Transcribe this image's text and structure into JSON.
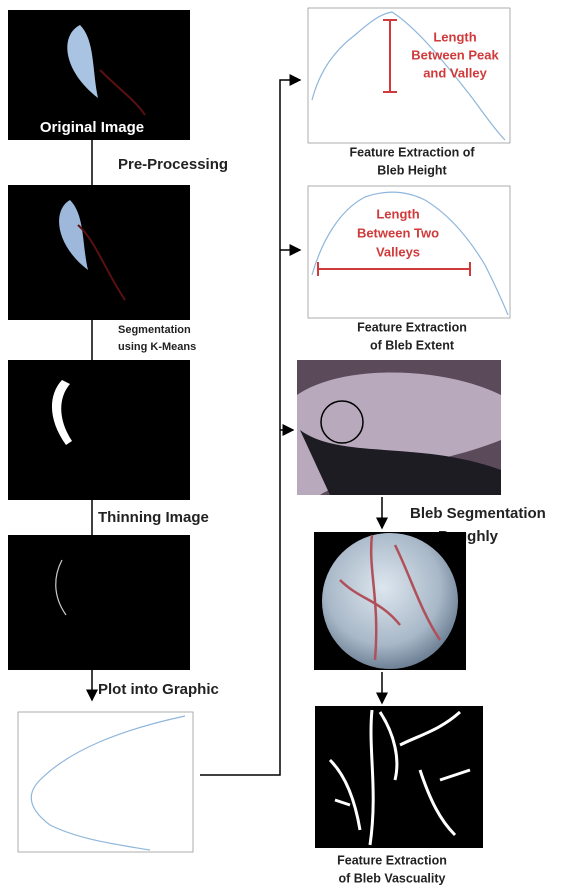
{
  "labels": {
    "original_image": "Original Image",
    "pre_processing": "Pre-Processing",
    "segmentation": [
      "Segmentation",
      "using K-Means"
    ],
    "thinning": "Thinning Image",
    "plot": "Plot into Graphic",
    "height_annotation": [
      "Length",
      "Between Peak",
      "and Valley"
    ],
    "height_caption": [
      "Feature Extraction of",
      "Bleb Height"
    ],
    "extent_annotation": [
      "Length",
      "Between Two",
      "Valleys"
    ],
    "extent_caption": [
      "Feature Extraction",
      "of Bleb Extent"
    ],
    "bleb_segmentation": [
      "Bleb Segmentation",
      "Roughly"
    ],
    "vascularity_caption": [
      "Feature Extraction",
      "of Bleb Vascuality"
    ]
  }
}
